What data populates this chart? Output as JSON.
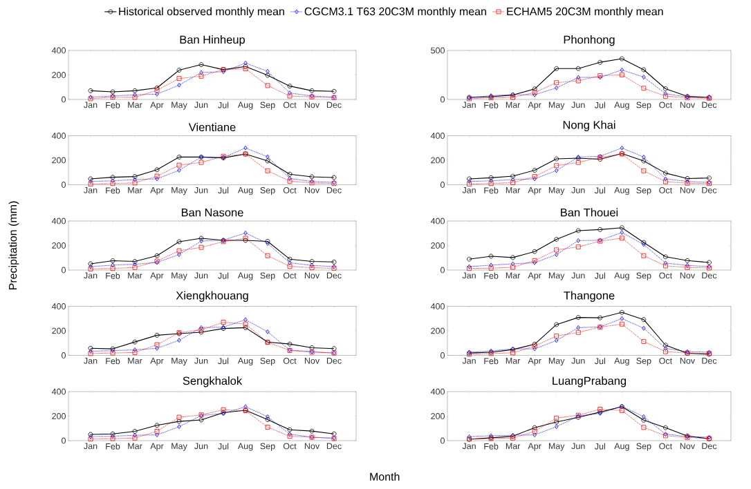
{
  "chart_data": [
    {
      "type": "line",
      "title": "Ban Hinheup",
      "categories": [
        "Jan",
        "Feb",
        "Mar",
        "Apr",
        "May",
        "Jun",
        "Jul",
        "Aug",
        "Sep",
        "Oct",
        "Nov",
        "Dec"
      ],
      "ylim": [
        0,
        400
      ],
      "yticks": [
        0,
        200,
        400
      ],
      "legend": "top",
      "series": [
        {
          "name": "Historical observed monthly mean",
          "color": "#000000",
          "marker": "circle",
          "line_style": "solid",
          "values": [
            71,
            62,
            71,
            94,
            239,
            284,
            243,
            269,
            197,
            109,
            71,
            66
          ]
        },
        {
          "name": "CGCM3.1 T63 20C3M monthly mean",
          "color": "#0000ff",
          "marker": "diamond",
          "line_style": "dotted",
          "values": [
            19,
            28,
            38,
            43,
            117,
            220,
            226,
            297,
            229,
            53,
            28,
            19
          ]
        },
        {
          "name": "ECHAM5 20C3M monthly mean",
          "color": "#ff0000",
          "marker": "square",
          "line_style": "dotted",
          "values": [
            6,
            19,
            17,
            75,
            171,
            190,
            244,
            250,
            113,
            28,
            21,
            15
          ]
        }
      ]
    },
    {
      "type": "line",
      "title": "Phonhong",
      "categories": [
        "Jan",
        "Feb",
        "Mar",
        "Apr",
        "May",
        "Jun",
        "Jul",
        "Aug",
        "Sep",
        "Oct",
        "Nov",
        "Dec"
      ],
      "ylim": [
        0,
        500
      ],
      "yticks": [
        0,
        500
      ],
      "series": [
        {
          "color": "#000000",
          "marker": "circle",
          "line_style": "solid",
          "values": [
            21,
            28,
            45,
            107,
            315,
            315,
            379,
            415,
            303,
            109,
            31,
            19
          ]
        },
        {
          "color": "#0000ff",
          "marker": "diamond",
          "line_style": "dotted",
          "values": [
            19,
            38,
            50,
            47,
            118,
            225,
            225,
            301,
            228,
            59,
            26,
            26
          ]
        },
        {
          "color": "#ff0000",
          "marker": "square",
          "line_style": "dotted",
          "values": [
            7,
            17,
            21,
            71,
            171,
            190,
            242,
            251,
            114,
            33,
            17,
            12
          ]
        }
      ]
    },
    {
      "type": "line",
      "title": "Vientiane",
      "categories": [
        "Jan",
        "Feb",
        "Mar",
        "Apr",
        "May",
        "Jun",
        "Jul",
        "Aug",
        "Sep",
        "Oct",
        "Nov",
        "Dec"
      ],
      "ylim": [
        0,
        400
      ],
      "yticks": [
        0,
        200,
        400
      ],
      "series": [
        {
          "color": "#000000",
          "marker": "circle",
          "line_style": "solid",
          "values": [
            48,
            61,
            67,
            122,
            226,
            226,
            219,
            251,
            194,
            86,
            65,
            59
          ]
        },
        {
          "color": "#0000ff",
          "marker": "diamond",
          "line_style": "dotted",
          "values": [
            27,
            32,
            42,
            48,
            118,
            226,
            222,
            300,
            228,
            51,
            27,
            19
          ]
        },
        {
          "color": "#ff0000",
          "marker": "square",
          "line_style": "dotted",
          "values": [
            6,
            10,
            15,
            70,
            160,
            182,
            232,
            251,
            114,
            29,
            15,
            10
          ]
        }
      ]
    },
    {
      "type": "line",
      "title": "Nong Khai",
      "categories": [
        "Jan",
        "Feb",
        "Mar",
        "Apr",
        "May",
        "Jun",
        "Jul",
        "Aug",
        "Sep",
        "Oct",
        "Nov",
        "Dec"
      ],
      "ylim": [
        0,
        400
      ],
      "yticks": [
        0,
        200,
        400
      ],
      "series": [
        {
          "color": "#000000",
          "marker": "circle",
          "line_style": "solid",
          "values": [
            48,
            57,
            70,
            118,
            211,
            217,
            208,
            255,
            194,
            95,
            51,
            55
          ]
        },
        {
          "color": "#0000ff",
          "marker": "diamond",
          "line_style": "dotted",
          "values": [
            27,
            32,
            42,
            48,
            116,
            226,
            232,
            300,
            226,
            48,
            27,
            19
          ]
        },
        {
          "color": "#ff0000",
          "marker": "square",
          "line_style": "dotted",
          "values": [
            6,
            10,
            17,
            67,
            156,
            182,
            224,
            251,
            114,
            25,
            13,
            10
          ]
        }
      ]
    },
    {
      "type": "line",
      "title": "Ban Nasone",
      "ylabel": "Precipitation (mm)",
      "categories": [
        "Jan",
        "Feb",
        "Mar",
        "Apr",
        "May",
        "Jun",
        "Jul",
        "Aug",
        "Sep",
        "Oct",
        "Nov",
        "Dec"
      ],
      "ylim": [
        0,
        400
      ],
      "yticks": [
        0,
        200,
        400
      ],
      "series": [
        {
          "color": "#000000",
          "marker": "circle",
          "line_style": "solid",
          "values": [
            51,
            76,
            70,
            117,
            231,
            259,
            242,
            242,
            234,
            89,
            70,
            66
          ]
        },
        {
          "color": "#0000ff",
          "marker": "diamond",
          "line_style": "dotted",
          "values": [
            28,
            40,
            47,
            62,
            127,
            236,
            244,
            302,
            217,
            59,
            38,
            28
          ]
        },
        {
          "color": "#ff0000",
          "marker": "square",
          "line_style": "dotted",
          "values": [
            9,
            13,
            21,
            72,
            157,
            185,
            232,
            259,
            117,
            30,
            19,
            15
          ]
        }
      ]
    },
    {
      "type": "line",
      "title": "Ban Thouei",
      "categories": [
        "Jan",
        "Feb",
        "Mar",
        "Apr",
        "May",
        "Jun",
        "Jul",
        "Aug",
        "Sep",
        "Oct",
        "Nov",
        "Dec"
      ],
      "ylim": [
        0,
        400
      ],
      "yticks": [
        0,
        200,
        400
      ],
      "series": [
        {
          "color": "#000000",
          "marker": "circle",
          "line_style": "solid",
          "values": [
            89,
            113,
            102,
            151,
            251,
            321,
            330,
            345,
            225,
            108,
            77,
            62
          ]
        },
        {
          "color": "#0000ff",
          "marker": "diamond",
          "line_style": "dotted",
          "values": [
            28,
            40,
            51,
            60,
            126,
            240,
            243,
            306,
            209,
            57,
            38,
            28
          ]
        },
        {
          "color": "#ff0000",
          "marker": "square",
          "line_style": "dotted",
          "values": [
            13,
            15,
            23,
            77,
            164,
            189,
            236,
            260,
            117,
            34,
            21,
            17
          ]
        }
      ]
    },
    {
      "type": "line",
      "title": "Xiengkhouang",
      "categories": [
        "Jan",
        "Feb",
        "Mar",
        "Apr",
        "May",
        "Jun",
        "Jul",
        "Aug",
        "Sep",
        "Oct",
        "Nov",
        "Dec"
      ],
      "ylim": [
        0,
        400
      ],
      "yticks": [
        0,
        200,
        400
      ],
      "series": [
        {
          "color": "#000000",
          "marker": "circle",
          "line_style": "solid",
          "values": [
            58,
            53,
            109,
            164,
            177,
            189,
            219,
            226,
            108,
            92,
            62,
            55
          ]
        },
        {
          "color": "#0000ff",
          "marker": "diamond",
          "line_style": "dotted",
          "values": [
            34,
            38,
            45,
            57,
            123,
            226,
            230,
            291,
            192,
            43,
            30,
            19
          ]
        },
        {
          "color": "#ff0000",
          "marker": "square",
          "line_style": "dotted",
          "values": [
            15,
            19,
            23,
            87,
            185,
            208,
            270,
            255,
            106,
            40,
            26,
            19
          ]
        }
      ]
    },
    {
      "type": "line",
      "title": "Thangone",
      "categories": [
        "Jan",
        "Feb",
        "Mar",
        "Apr",
        "May",
        "Jun",
        "Jul",
        "Aug",
        "Sep",
        "Oct",
        "Nov",
        "Dec"
      ],
      "ylim": [
        0,
        400
      ],
      "yticks": [
        0,
        200,
        400
      ],
      "series": [
        {
          "color": "#000000",
          "marker": "circle",
          "line_style": "solid",
          "values": [
            19,
            25,
            47,
            91,
            251,
            309,
            306,
            351,
            292,
            83,
            17,
            9
          ]
        },
        {
          "color": "#0000ff",
          "marker": "diamond",
          "line_style": "dotted",
          "values": [
            25,
            36,
            53,
            53,
            121,
            226,
            232,
            300,
            221,
            57,
            30,
            26
          ]
        },
        {
          "color": "#ff0000",
          "marker": "square",
          "line_style": "dotted",
          "values": [
            9,
            15,
            21,
            75,
            158,
            187,
            230,
            255,
            113,
            30,
            19,
            15
          ]
        }
      ]
    },
    {
      "type": "line",
      "title": "Sengkhalok",
      "xlabel": "Month",
      "categories": [
        "Jan",
        "Feb",
        "Mar",
        "Apr",
        "May",
        "Jun",
        "Jul",
        "Aug",
        "Sep",
        "Oct",
        "Nov",
        "Dec"
      ],
      "ylim": [
        0,
        400
      ],
      "yticks": [
        0,
        200,
        400
      ],
      "series": [
        {
          "color": "#000000",
          "marker": "circle",
          "line_style": "solid",
          "values": [
            51,
            55,
            76,
            125,
            157,
            169,
            228,
            248,
            172,
            89,
            78,
            55
          ]
        },
        {
          "color": "#0000ff",
          "marker": "diamond",
          "line_style": "dotted",
          "values": [
            32,
            36,
            44,
            47,
            114,
            205,
            222,
            277,
            195,
            53,
            28,
            21
          ]
        },
        {
          "color": "#ff0000",
          "marker": "square",
          "line_style": "dotted",
          "values": [
            13,
            17,
            21,
            76,
            191,
            210,
            252,
            244,
            110,
            36,
            28,
            17
          ]
        }
      ]
    },
    {
      "type": "line",
      "title": "LuangPrabang",
      "categories": [
        "Jan",
        "Feb",
        "Mar",
        "Apr",
        "May",
        "Jun",
        "Jul",
        "Aug",
        "Sep",
        "Oct",
        "Nov",
        "Dec"
      ],
      "ylim": [
        0,
        400
      ],
      "yticks": [
        0,
        200,
        400
      ],
      "series": [
        {
          "color": "#000000",
          "marker": "circle",
          "line_style": "solid",
          "values": [
            11,
            23,
            36,
            106,
            152,
            190,
            233,
            277,
            167,
            106,
            38,
            15
          ]
        },
        {
          "color": "#0000ff",
          "marker": "diamond",
          "line_style": "dotted",
          "values": [
            32,
            40,
            44,
            47,
            114,
            201,
            222,
            280,
            195,
            53,
            34,
            28
          ]
        },
        {
          "color": "#ff0000",
          "marker": "square",
          "line_style": "dotted",
          "values": [
            13,
            17,
            21,
            76,
            184,
            207,
            256,
            246,
            108,
            40,
            26,
            17
          ]
        }
      ]
    }
  ]
}
